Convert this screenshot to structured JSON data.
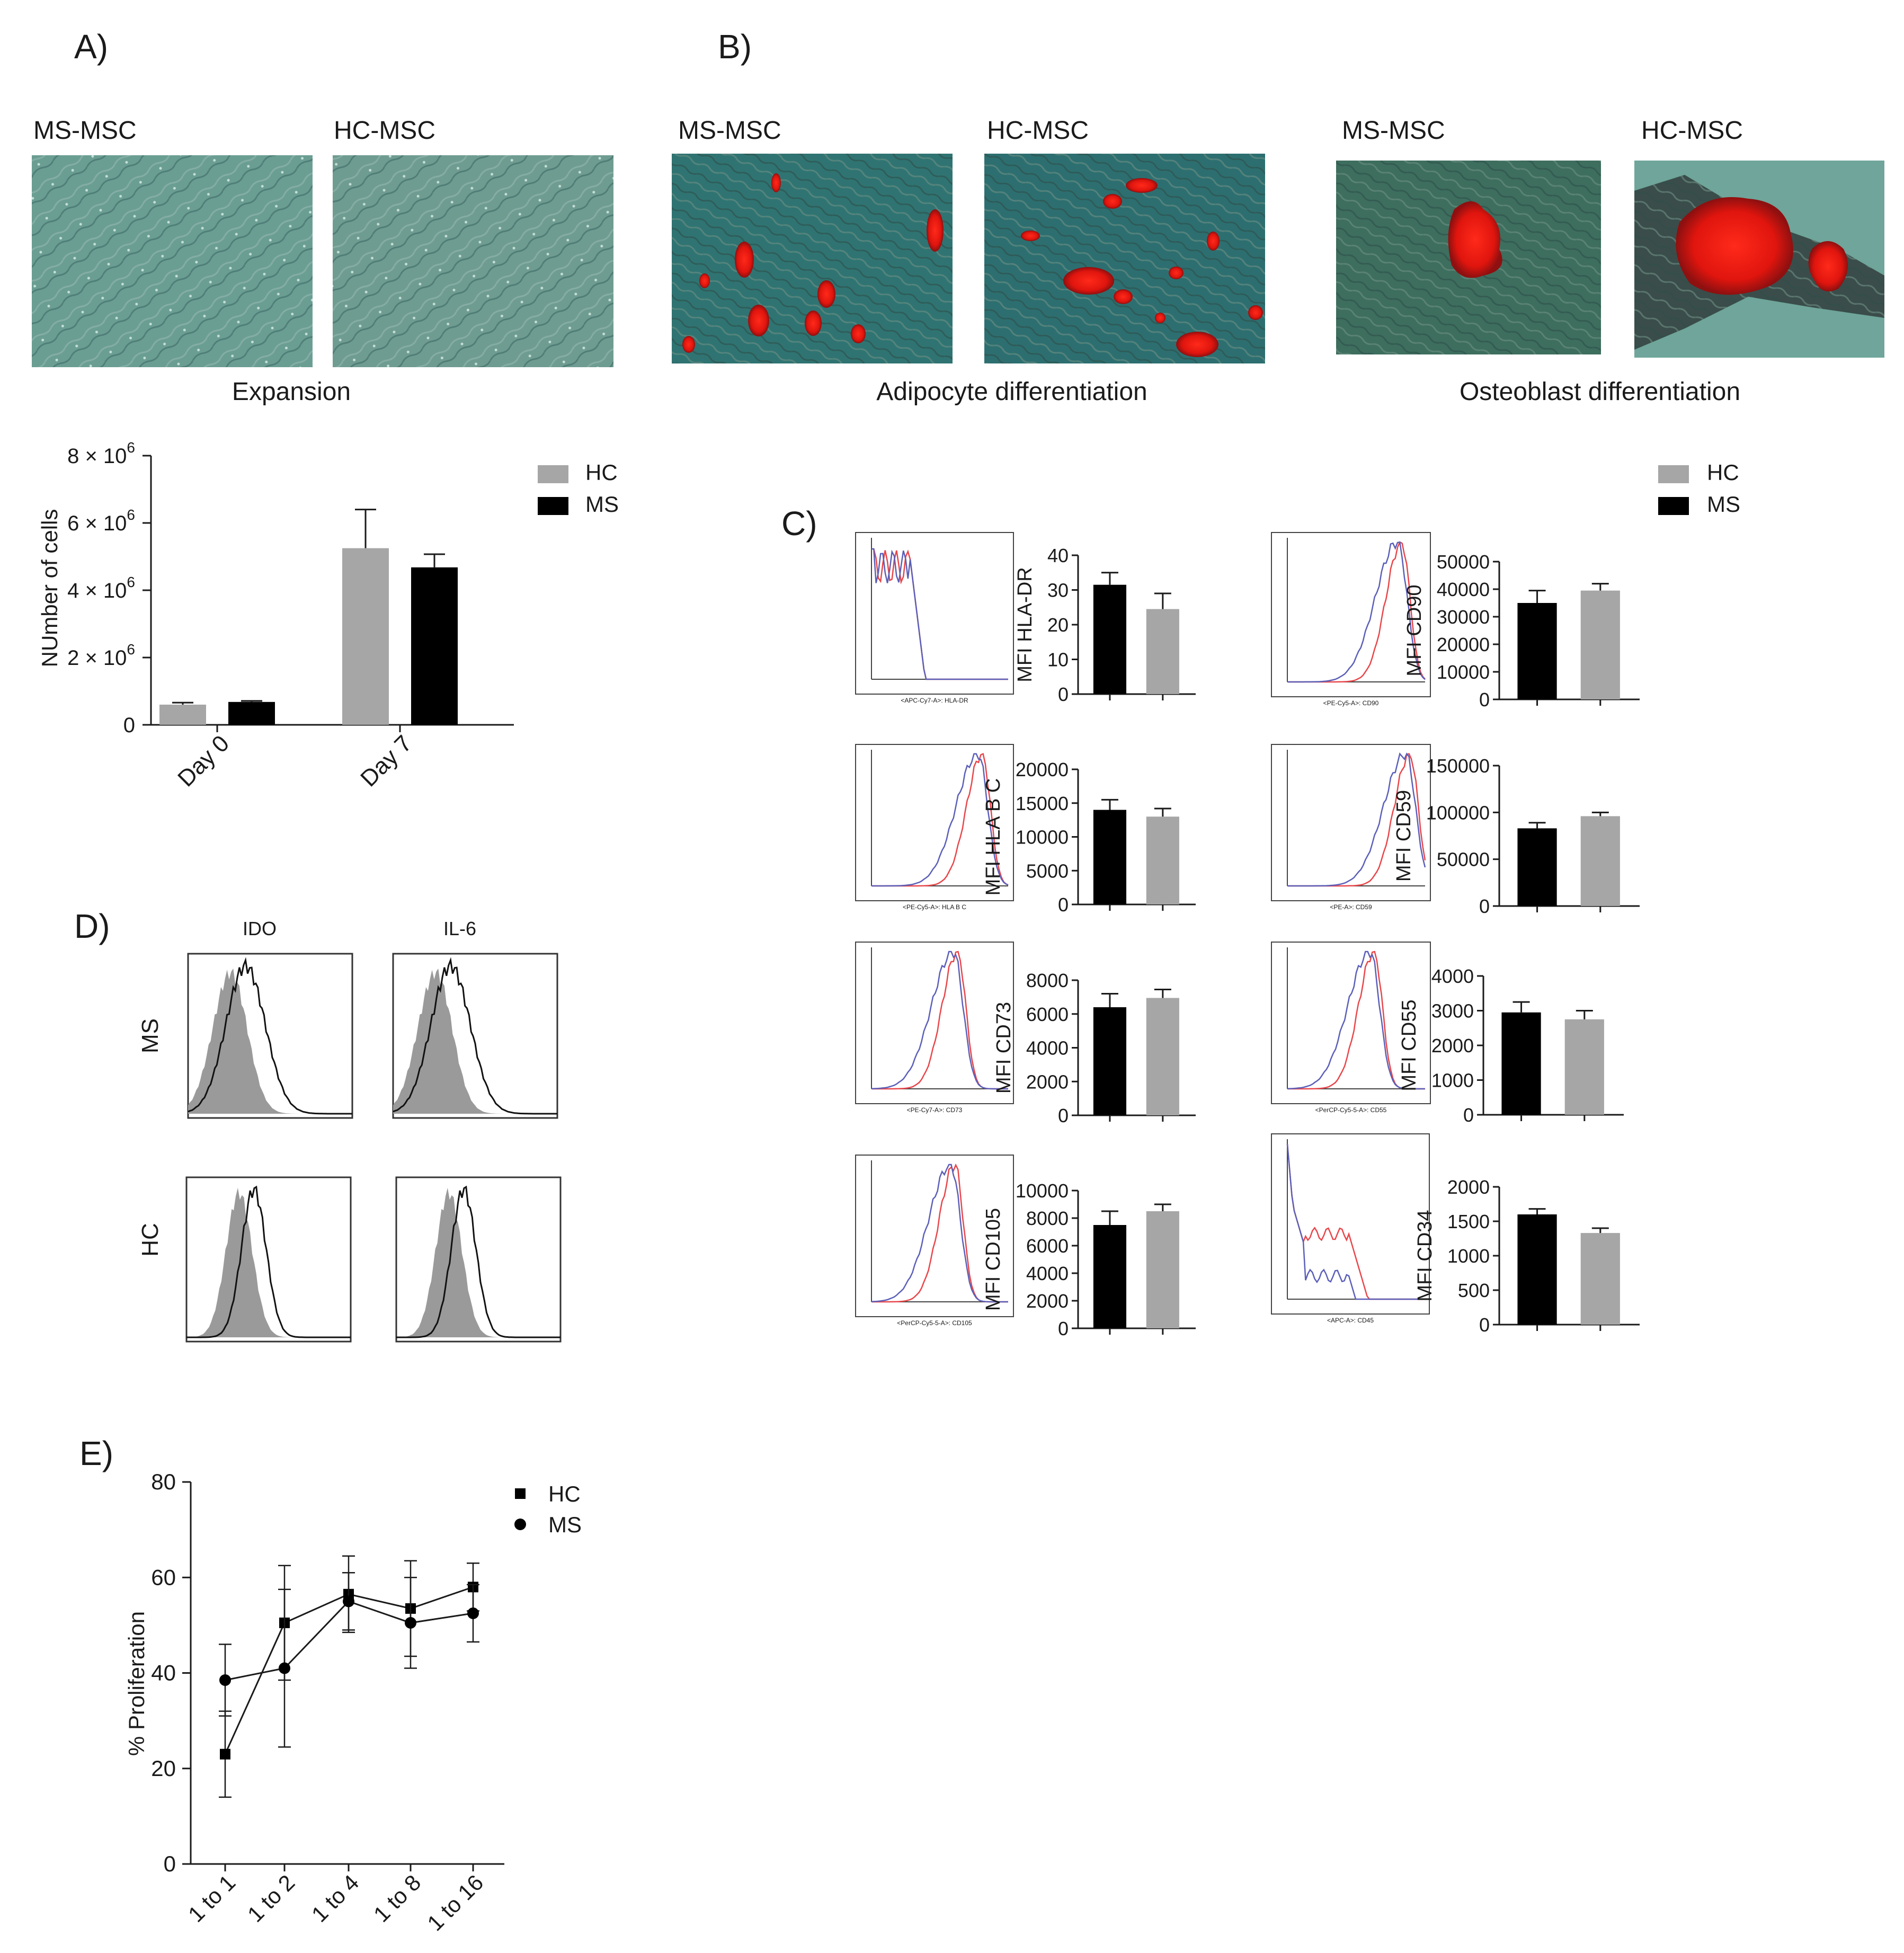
{
  "panel_letters": {
    "a": "A)",
    "b": "B)",
    "c": "C)",
    "d": "D)",
    "e": "E)"
  },
  "micrographs": {
    "ms_label": "MS-MSC",
    "hc_label": "HC-MSC",
    "expansion": "Expansion",
    "adipocyte": "Adipocyte differentiation",
    "osteoblast": "Osteoblast differentiation"
  },
  "legend_bars": {
    "hc": "HC",
    "ms": "MS"
  },
  "colors": {
    "hc": "#a6a6a6",
    "ms": "#000000",
    "flow_red": "#e8464a",
    "flow_blue": "#5b5fb8"
  },
  "chart_data": [
    {
      "id": "cell_count",
      "type": "bar",
      "categories": [
        "Day 0",
        "Day 7"
      ],
      "series": [
        {
          "name": "HC",
          "color": "#a6a6a6",
          "values": [
            600000,
            5250000
          ],
          "errors": [
            60000,
            1150000
          ]
        },
        {
          "name": "MS",
          "color": "#000000",
          "values": [
            680000,
            4680000
          ],
          "errors": [
            30000,
            390000
          ]
        }
      ],
      "ylabel": "NUmber of cells",
      "ylim": [
        0,
        8000000
      ],
      "yticks": [
        "0",
        "2",
        "4",
        "6",
        "8"
      ],
      "ytick_exp": [
        "",
        "6",
        "6",
        "6",
        "6"
      ],
      "ytick_base": "× 10",
      "legend": "top-right"
    },
    {
      "id": "flow_markers",
      "type": "bar",
      "series_names": [
        "MS",
        "HC"
      ],
      "panels": [
        {
          "marker": "HLA-DR",
          "ylabel": "MFI HLA-DR",
          "ylim": [
            0,
            40
          ],
          "yticks": [
            "0",
            "10",
            "20",
            "30",
            "40"
          ],
          "values": [
            31.5,
            24.5
          ],
          "errors": [
            3.5,
            4.5
          ],
          "colors": [
            "#000000",
            "#a6a6a6"
          ],
          "flow_xlabel": "<APC-Cy7-A>: HLA-DR"
        },
        {
          "marker": "CD90",
          "ylabel": "MFI CD90",
          "ylim": [
            0,
            50000
          ],
          "yticks": [
            "0",
            "10000",
            "20000",
            "30000",
            "40000",
            "50000"
          ],
          "values": [
            35000,
            39500
          ],
          "errors": [
            4500,
            2500
          ],
          "colors": [
            "#000000",
            "#a6a6a6"
          ],
          "flow_xlabel": "<PE-Cy5-A>: CD90"
        },
        {
          "marker": "HLA B C",
          "ylabel": "MFI HLA B C",
          "ylim": [
            0,
            20000
          ],
          "yticks": [
            "0",
            "5000",
            "10000",
            "15000",
            "20000"
          ],
          "values": [
            14000,
            13000
          ],
          "errors": [
            1500,
            1200
          ],
          "colors": [
            "#000000",
            "#a6a6a6"
          ],
          "flow_xlabel": "<PE-Cy5-A>: HLA B C"
        },
        {
          "marker": "CD59",
          "ylabel": "MFI CD59",
          "ylim": [
            0,
            150000
          ],
          "yticks": [
            "0",
            "50000",
            "100000",
            "150000"
          ],
          "values": [
            83000,
            96000
          ],
          "errors": [
            6000,
            4000
          ],
          "colors": [
            "#000000",
            "#a6a6a6"
          ],
          "flow_xlabel": "<PE-A>: CD59"
        },
        {
          "marker": "CD73",
          "ylabel": "MFI CD73",
          "ylim": [
            0,
            8000
          ],
          "yticks": [
            "0",
            "2000",
            "4000",
            "6000",
            "8000"
          ],
          "values": [
            6400,
            6950
          ],
          "errors": [
            800,
            500
          ],
          "colors": [
            "#000000",
            "#a6a6a6"
          ],
          "flow_xlabel": "<PE-Cy7-A>: CD73"
        },
        {
          "marker": "CD55",
          "ylabel": "MFI CD55",
          "ylim": [
            0,
            4000
          ],
          "yticks": [
            "0",
            "1000",
            "2000",
            "3000",
            "4000"
          ],
          "values": [
            2950,
            2750
          ],
          "errors": [
            300,
            250
          ],
          "colors": [
            "#000000",
            "#a6a6a6"
          ],
          "flow_xlabel": "<PerCP-Cy5-5-A>: CD55"
        },
        {
          "marker": "CD105",
          "ylabel": "MFI CD105",
          "ylim": [
            0,
            10000
          ],
          "yticks": [
            "0",
            "2000",
            "4000",
            "6000",
            "8000",
            "10000"
          ],
          "values": [
            7500,
            8500
          ],
          "errors": [
            1000,
            500
          ],
          "colors": [
            "#000000",
            "#a6a6a6"
          ],
          "flow_xlabel": "<PerCP-Cy5-5-A>: CD105"
        },
        {
          "marker": "CD34",
          "ylabel": "MFI CD34",
          "ylim": [
            0,
            2000
          ],
          "yticks": [
            "0",
            "500",
            "1000",
            "1500",
            "2000"
          ],
          "values": [
            1600,
            1330
          ],
          "errors": [
            80,
            70
          ],
          "colors": [
            "#000000",
            "#a6a6a6"
          ],
          "flow_xlabel": "<APC-A>: CD45"
        }
      ]
    },
    {
      "id": "ido_il6",
      "type": "histogram",
      "columns": [
        "IDO",
        "IL-6"
      ],
      "rows": [
        "MS",
        "HC"
      ]
    },
    {
      "id": "proliferation",
      "type": "line",
      "categories": [
        "1 to 1",
        "1 to 2",
        "1 to 4",
        "1 to 8",
        "1 to 16"
      ],
      "series": [
        {
          "name": "HC",
          "marker": "square",
          "values": [
            23,
            50.5,
            56.5,
            53.5,
            58
          ],
          "errors": [
            9,
            12,
            8,
            10,
            5
          ]
        },
        {
          "name": "MS",
          "marker": "circle",
          "values": [
            38.5,
            41,
            55,
            50.5,
            52.5
          ],
          "errors": [
            7.5,
            16.5,
            6,
            9.5,
            6
          ]
        }
      ],
      "ylabel": "% Proliferation",
      "ylim": [
        0,
        80
      ],
      "yticks": [
        "0",
        "20",
        "40",
        "60",
        "80"
      ],
      "legend": "top-right"
    }
  ]
}
